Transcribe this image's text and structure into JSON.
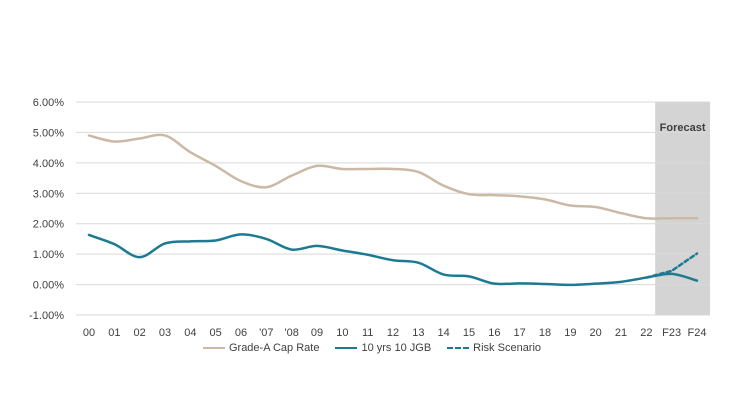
{
  "chart_data": {
    "type": "line",
    "categories": [
      "00",
      "01",
      "02",
      "03",
      "04",
      "05",
      "06",
      "'07",
      "'08",
      "09",
      "10",
      "11",
      "12",
      "13",
      "14",
      "15",
      "16",
      "17",
      "18",
      "19",
      "20",
      "21",
      "22",
      "F23",
      "F24"
    ],
    "ylim": [
      -0.01,
      0.06
    ],
    "yticks": [
      "-1.00%",
      "0.00%",
      "1.00%",
      "2.00%",
      "3.00%",
      "4.00%",
      "5.00%",
      "6.00%"
    ],
    "ytick_values": [
      -0.01,
      0.0,
      0.01,
      0.02,
      0.03,
      0.04,
      0.05,
      0.06
    ],
    "grid": true,
    "legend_position": "bottom",
    "forecast_label": "Forecast",
    "forecast_start": "22",
    "series": [
      {
        "name": "Grade-A Cap Rate",
        "color": "#cbb9a6",
        "style": "solid",
        "values": [
          0.049,
          0.047,
          0.048,
          0.049,
          0.0435,
          0.039,
          0.034,
          0.032,
          0.0358,
          0.039,
          0.038,
          0.038,
          0.038,
          0.037,
          0.0325,
          0.0297,
          0.0294,
          0.029,
          0.028,
          0.026,
          0.0255,
          0.0235,
          0.0218,
          0.0218,
          0.0218
        ]
      },
      {
        "name": "10 yrs 10 JGB",
        "color": "#1d7a92",
        "style": "solid",
        "values": [
          0.0163,
          0.0133,
          0.009,
          0.0135,
          0.0142,
          0.0145,
          0.0165,
          0.015,
          0.0115,
          0.0127,
          0.0112,
          0.0098,
          0.008,
          0.0072,
          0.0033,
          0.0027,
          0.0003,
          0.0004,
          0.0002,
          -0.0001,
          0.0003,
          0.0009,
          0.0023,
          0.0035,
          0.0013
        ]
      },
      {
        "name": "Risk Scenario",
        "color": "#1d7a92",
        "style": "dashed",
        "x": [
          "22",
          "F23",
          "F24"
        ],
        "values": [
          0.0023,
          0.0045,
          0.0102
        ]
      }
    ]
  }
}
